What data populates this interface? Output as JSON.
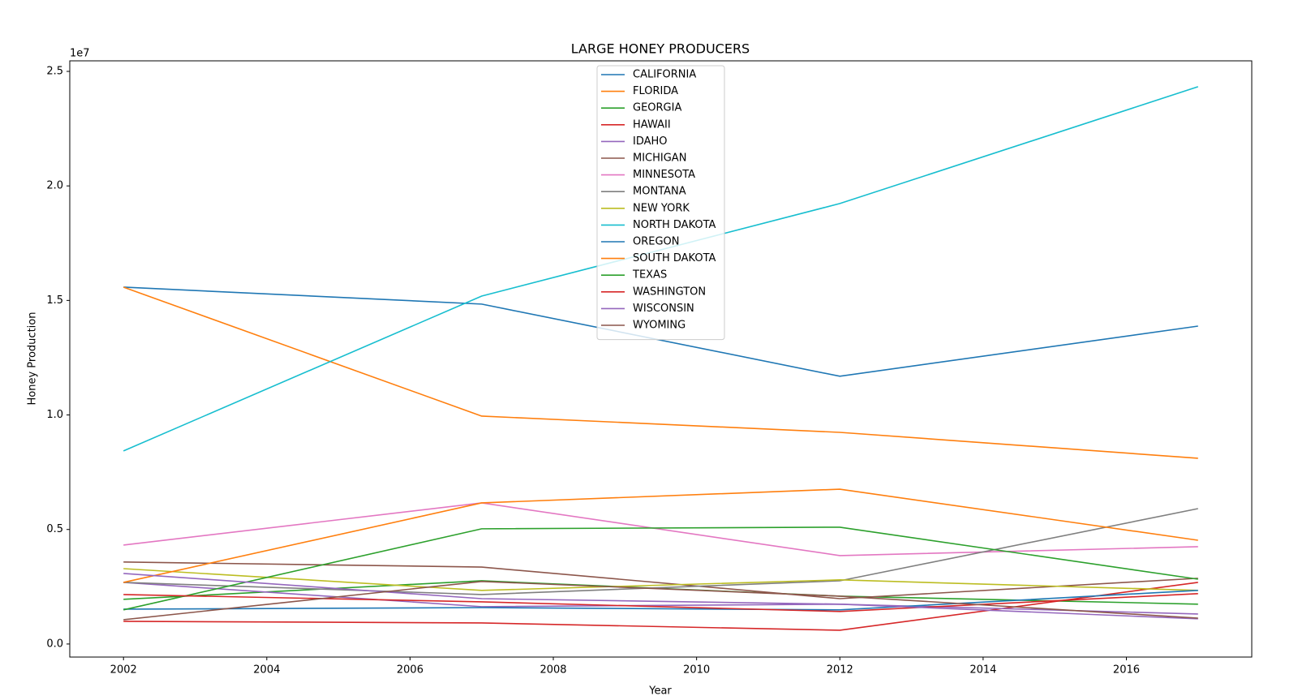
{
  "chart_data": {
    "type": "line",
    "title": "LARGE HONEY PRODUCERS",
    "y_label": "Honey Production",
    "x_label": "Year",
    "y_offset_label": "1e7",
    "x": [
      2002,
      2007,
      2012,
      2017
    ],
    "xlim": [
      2001.25,
      2017.75
    ],
    "xticks": [
      2002,
      2004,
      2006,
      2008,
      2010,
      2012,
      2014,
      2016
    ],
    "ylim": [
      -570000,
      25460000
    ],
    "yticks": [
      {
        "value": 0,
        "label": "0.0"
      },
      {
        "value": 5000000,
        "label": "0.5"
      },
      {
        "value": 10000000,
        "label": "1.0"
      },
      {
        "value": 15000000,
        "label": "1.5"
      },
      {
        "value": 20000000,
        "label": "2.0"
      },
      {
        "value": 25000000,
        "label": "2.5"
      }
    ],
    "legend": "upper center",
    "series": [
      {
        "name": "CALIFORNIA",
        "color": "#1f77b4",
        "values": [
          15580000,
          14840000,
          11690000,
          13880000
        ]
      },
      {
        "name": "FLORIDA",
        "color": "#ff7f0e",
        "values": [
          15580000,
          9950000,
          9240000,
          8110000
        ]
      },
      {
        "name": "GEORGIA",
        "color": "#2ca02c",
        "values": [
          1950000,
          2760000,
          2090000,
          1740000
        ]
      },
      {
        "name": "HAWAII",
        "color": "#d62728",
        "values": [
          990000,
          920000,
          600000,
          2690000
        ]
      },
      {
        "name": "IDAHO",
        "color": "#9467bd",
        "values": [
          2690000,
          1630000,
          1740000,
          1310000
        ]
      },
      {
        "name": "MICHIGAN",
        "color": "#8c564b",
        "values": [
          3580000,
          3360000,
          1980000,
          2870000
        ]
      },
      {
        "name": "MINNESOTA",
        "color": "#e377c2",
        "values": [
          4320000,
          6160000,
          3860000,
          4250000
        ]
      },
      {
        "name": "MONTANA",
        "color": "#7f7f7f",
        "values": [
          2690000,
          2160000,
          2760000,
          5910000
        ]
      },
      {
        "name": "NEW YORK",
        "color": "#bcbd22",
        "values": [
          3290000,
          2340000,
          2800000,
          2340000
        ]
      },
      {
        "name": "NORTH DAKOTA",
        "color": "#17becf",
        "values": [
          8430000,
          15190000,
          19230000,
          24330000
        ]
      },
      {
        "name": "OREGON",
        "color": "#1f77b4",
        "values": [
          1520000,
          1590000,
          1490000,
          2340000
        ]
      },
      {
        "name": "SOUTH DAKOTA",
        "color": "#ff7f0e",
        "values": [
          2690000,
          6160000,
          6760000,
          4530000
        ]
      },
      {
        "name": "TEXAS",
        "color": "#2ca02c",
        "values": [
          1490000,
          5030000,
          5100000,
          2830000
        ]
      },
      {
        "name": "WASHINGTON",
        "color": "#d62728",
        "values": [
          2160000,
          1840000,
          1420000,
          2200000
        ]
      },
      {
        "name": "WISCONSIN",
        "color": "#9467bd",
        "values": [
          3080000,
          1980000,
          1740000,
          1100000
        ]
      },
      {
        "name": "WYOMING",
        "color": "#8c564b",
        "values": [
          1060000,
          2730000,
          2090000,
          1130000
        ]
      }
    ]
  }
}
